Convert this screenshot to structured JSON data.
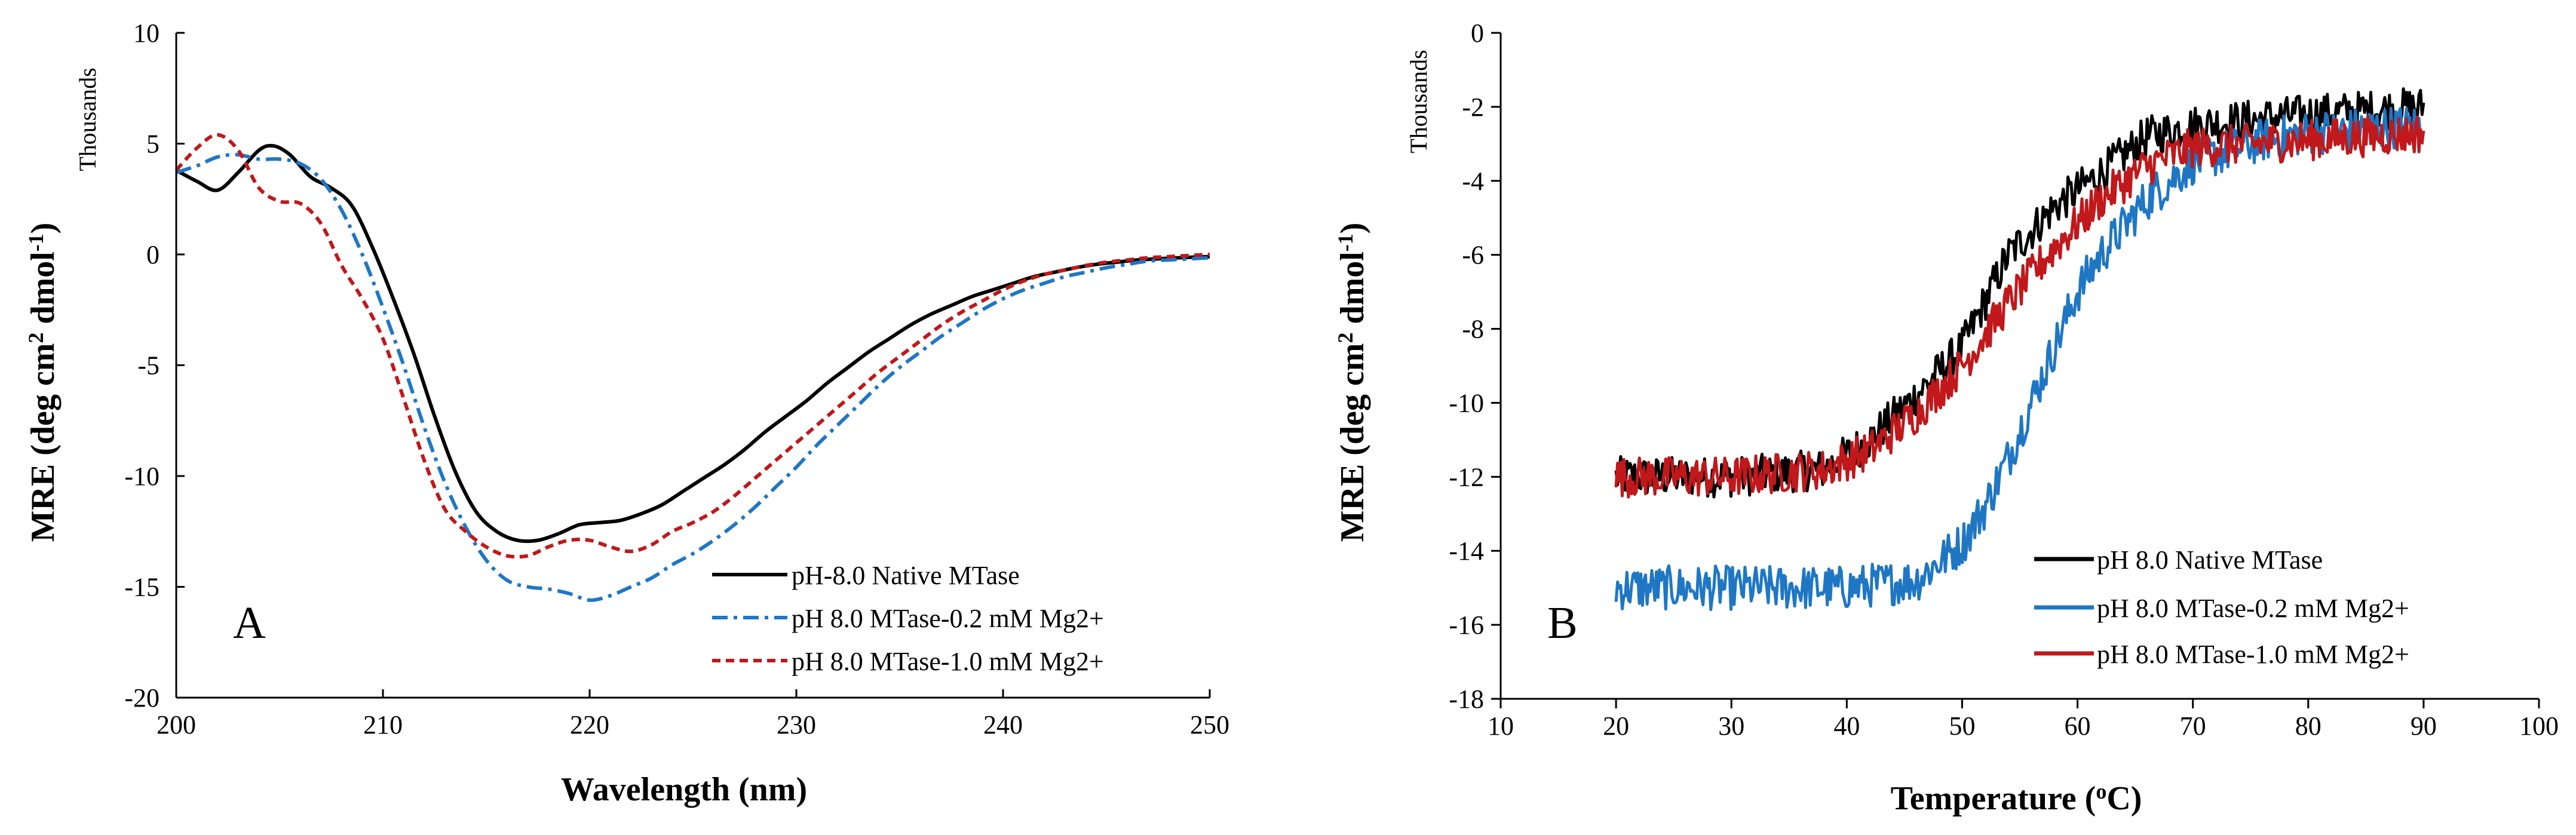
{
  "chart_data": [
    {
      "type": "line",
      "panel_label": "A",
      "title": "",
      "xlabel": "Wavelength (nm)",
      "ylabel_main": "MRE (deg cm",
      "ylabel_sup1": "2",
      "ylabel_mid": " dmol",
      "ylabel_sup2": "-1",
      "ylabel_end": ")",
      "yunit": "Thousands",
      "xlim": [
        200,
        250
      ],
      "ylim": [
        -20,
        10
      ],
      "xticks": [
        200,
        210,
        220,
        230,
        240,
        250
      ],
      "yticks": [
        10,
        5,
        0,
        -5,
        -10,
        -15,
        -20
      ],
      "legend_position": "bottom-right",
      "series": [
        {
          "name": "pH-8.0 Native MTase",
          "color": "#000000",
          "dash": "solid",
          "x": [
            200,
            201,
            202,
            203,
            204,
            204.7,
            205.5,
            206.5,
            207.5,
            208.5,
            209.5,
            210.5,
            211.5,
            212.5,
            213.5,
            214.5,
            215.5,
            216.5,
            217.5,
            218.5,
            219.5,
            220.5,
            221.5,
            222.5,
            223.5,
            224.5,
            225.5,
            226.5,
            227.5,
            228.5,
            229.5,
            230.5,
            231.5,
            232.5,
            233.5,
            234.5,
            235.5,
            236.5,
            237.5,
            238.5,
            239.5,
            240.5,
            241.5,
            242.5,
            243.5,
            244.5,
            245.5,
            246.5,
            247.5,
            248.5,
            250
          ],
          "y": [
            3.8,
            3.3,
            2.9,
            3.7,
            4.7,
            4.9,
            4.5,
            3.5,
            3.0,
            2.2,
            0.3,
            -2.0,
            -4.5,
            -7.3,
            -9.8,
            -11.6,
            -12.5,
            -12.9,
            -12.9,
            -12.6,
            -12.2,
            -12.1,
            -12.0,
            -11.7,
            -11.3,
            -10.7,
            -10.1,
            -9.5,
            -8.8,
            -8.0,
            -7.3,
            -6.6,
            -5.8,
            -5.1,
            -4.4,
            -3.8,
            -3.2,
            -2.7,
            -2.3,
            -1.9,
            -1.6,
            -1.3,
            -1.0,
            -0.8,
            -0.6,
            -0.45,
            -0.35,
            -0.25,
            -0.2,
            -0.15,
            -0.1
          ]
        },
        {
          "name": "pH 8.0 MTase-0.2 mM Mg2+",
          "color": "#1f77c4",
          "dash": "dashdot",
          "x": [
            200,
            201,
            202,
            203,
            204,
            205,
            206,
            207,
            208,
            209,
            210,
            211,
            212,
            213,
            214,
            215,
            216,
            217,
            218,
            219,
            220,
            221,
            222,
            223,
            224,
            225,
            226,
            227,
            228,
            229,
            230,
            231,
            232,
            233,
            234,
            235,
            236,
            237,
            238,
            239,
            240,
            241,
            242,
            243,
            244,
            245,
            246,
            247,
            248,
            249,
            250
          ],
          "y": [
            3.7,
            4.0,
            4.4,
            4.5,
            4.3,
            4.3,
            4.1,
            3.4,
            2.0,
            0.0,
            -2.4,
            -5.0,
            -7.8,
            -10.3,
            -12.3,
            -13.8,
            -14.7,
            -15.0,
            -15.1,
            -15.3,
            -15.6,
            -15.4,
            -15.0,
            -14.6,
            -14.0,
            -13.5,
            -12.9,
            -12.2,
            -11.4,
            -10.5,
            -9.6,
            -8.6,
            -7.7,
            -6.8,
            -5.9,
            -5.1,
            -4.4,
            -3.7,
            -3.1,
            -2.5,
            -2.0,
            -1.6,
            -1.3,
            -1.0,
            -0.8,
            -0.6,
            -0.45,
            -0.3,
            -0.25,
            -0.2,
            -0.15
          ]
        },
        {
          "name": "pH 8.0 MTase-1.0 mM Mg2+",
          "color": "#c0181b",
          "dash": "dashed",
          "x": [
            200,
            201,
            202,
            203,
            204,
            205,
            206,
            207,
            208,
            209,
            210,
            211,
            212,
            213,
            214,
            215,
            216,
            217,
            218,
            219,
            220,
            221,
            222,
            223,
            224,
            225,
            226,
            227,
            228,
            229,
            230,
            231,
            232,
            233,
            234,
            235,
            236,
            237,
            238,
            239,
            240,
            241,
            242,
            243,
            244,
            245,
            246,
            247,
            248,
            249,
            250
          ],
          "y": [
            3.8,
            4.8,
            5.4,
            4.7,
            3.0,
            2.4,
            2.3,
            1.4,
            -0.5,
            -2.0,
            -3.8,
            -6.5,
            -9.3,
            -11.5,
            -12.5,
            -13.2,
            -13.6,
            -13.6,
            -13.2,
            -12.9,
            -12.9,
            -13.2,
            -13.4,
            -13.1,
            -12.5,
            -12.1,
            -11.6,
            -10.9,
            -10.1,
            -9.3,
            -8.5,
            -7.7,
            -6.9,
            -6.1,
            -5.3,
            -4.6,
            -3.9,
            -3.2,
            -2.6,
            -2.1,
            -1.6,
            -1.2,
            -0.9,
            -0.7,
            -0.5,
            -0.35,
            -0.25,
            -0.15,
            -0.1,
            -0.05,
            0.0
          ]
        }
      ]
    },
    {
      "type": "line",
      "panel_label": "B",
      "title": "",
      "xlabel_main": "Temperature (",
      "xlabel_sup": "o",
      "xlabel_end": "C)",
      "ylabel_main": "MRE (deg cm",
      "ylabel_sup1": "2",
      "ylabel_mid": " dmol",
      "ylabel_sup2": "-1",
      "ylabel_end": ")",
      "yunit": "Thousands",
      "xlim": [
        10,
        100
      ],
      "ylim": [
        -18,
        0
      ],
      "xticks": [
        10,
        20,
        30,
        40,
        50,
        60,
        70,
        80,
        90,
        100
      ],
      "yticks": [
        0,
        -2,
        -4,
        -6,
        -8,
        -10,
        -12,
        -14,
        -16,
        -18
      ],
      "legend_position": "bottom-right",
      "series": [
        {
          "name": "pH 8.0 Native MTase",
          "color": "#000000",
          "x_range": [
            20,
            90
          ],
          "noise": 0.55,
          "trend": [
            [
              20,
              -12.0
            ],
            [
              30,
              -12.0
            ],
            [
              38,
              -11.8
            ],
            [
              42,
              -11.0
            ],
            [
              46,
              -9.8
            ],
            [
              50,
              -8.5
            ],
            [
              54,
              -6.0
            ],
            [
              58,
              -4.7
            ],
            [
              62,
              -3.8
            ],
            [
              66,
              -2.8
            ],
            [
              70,
              -2.5
            ],
            [
              80,
              -2.2
            ],
            [
              90,
              -2.0
            ]
          ]
        },
        {
          "name": "pH 8.0 MTase-0.2 mM Mg2+",
          "color": "#1f77c4",
          "x_range": [
            20,
            90
          ],
          "noise": 0.6,
          "trend": [
            [
              20,
              -15.0
            ],
            [
              30,
              -15.0
            ],
            [
              40,
              -15.0
            ],
            [
              46,
              -14.8
            ],
            [
              50,
              -13.8
            ],
            [
              52,
              -12.8
            ],
            [
              54,
              -11.5
            ],
            [
              56,
              -10.0
            ],
            [
              58,
              -8.5
            ],
            [
              60,
              -7.0
            ],
            [
              62,
              -6.0
            ],
            [
              66,
              -4.5
            ],
            [
              70,
              -3.5
            ],
            [
              76,
              -2.9
            ],
            [
              80,
              -2.7
            ],
            [
              90,
              -2.5
            ]
          ]
        },
        {
          "name": "pH 8.0 MTase-1.0 mM Mg2+",
          "color": "#c0181b",
          "x_range": [
            20,
            90
          ],
          "noise": 0.55,
          "trend": [
            [
              20,
              -12.0
            ],
            [
              30,
              -12.0
            ],
            [
              38,
              -11.8
            ],
            [
              42,
              -11.3
            ],
            [
              46,
              -10.3
            ],
            [
              50,
              -9.0
            ],
            [
              54,
              -7.3
            ],
            [
              58,
              -5.8
            ],
            [
              62,
              -4.5
            ],
            [
              66,
              -3.6
            ],
            [
              70,
              -3.1
            ],
            [
              80,
              -2.9
            ],
            [
              90,
              -2.7
            ]
          ]
        }
      ]
    }
  ]
}
